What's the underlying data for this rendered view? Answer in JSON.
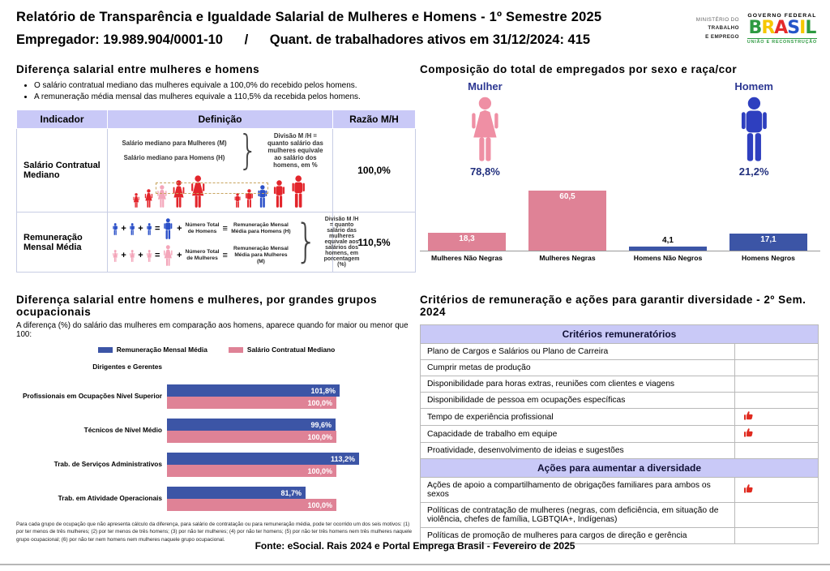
{
  "header": {
    "title": "Relatório de Transparência e Igualdade Salarial de Mulheres e Homens - 1º Semestre 2025",
    "employer": "Empregador: 19.989.904/0001-10",
    "separator": "/",
    "active_workers": "Quant. de trabalhadores ativos em 31/12/2024: 415",
    "logo": {
      "ministry_line1": "MINISTÉRIO DO",
      "ministry_line2": "TRABALHO",
      "ministry_line3": "E EMPREGO",
      "federal": "GOVERNO FEDERAL",
      "brand": "BRASIL",
      "brand_letter_colors": [
        "#2e9a41",
        "#f6c700",
        "#e52b2b",
        "#2455c8",
        "#f6c700",
        "#2e9a41"
      ],
      "slogan": "UNIÃO E RECONSTRUÇÃO"
    }
  },
  "salary_diff": {
    "title": "Diferença salarial entre mulheres e homens",
    "brace": "}",
    "bullets": [
      "O salário contratual mediano das mulheres equivale a 100,0% do recebido pelos homens.",
      "A remuneração média mensal das mulheres equivale a 110,5% da recebida pelos homens."
    ],
    "table": {
      "headers": [
        "Indicador",
        "Definição",
        "Razão M/H"
      ],
      "rows": [
        {
          "indicator": "Salário Contratual Mediano",
          "def_line1": "Salário mediano para Mulheres (M)",
          "def_line2": "Salário mediano para Homens (H)",
          "note": "Divisão M /H = quanto salário das mulheres equivale ao salário dos homens, em %",
          "ratio": "100,0%"
        },
        {
          "indicator": "Remuneração Mensal Média",
          "men_count_label": "Número Total de Homens",
          "men_avg_label": "Remuneração Mensal Média para Homens (H)",
          "women_count_label": "Número Total de Mulheres",
          "women_avg_label": "Remuneração Mensal Média para Mulheres (M)",
          "note": "Divisão M /H = quanto salário das mulheres equivale aos salários dos homens, em porcentagem (%)",
          "ratio": "110,5%"
        }
      ]
    }
  },
  "composition": {
    "title": "Composição do total de empregados por sexo e raça/cor",
    "female": {
      "label": "Mulher",
      "pct": "78,8%"
    },
    "male": {
      "label": "Homem",
      "pct": "21,2%"
    }
  },
  "occupational": {
    "title": "Diferença salarial entre homens e mulheres, por grandes grupos ocupacionais",
    "subtitle": "A diferença (%) do salário das mulheres em comparação aos homens, aparece quando for maior ou menor que 100:",
    "legend": [
      {
        "label": "Remuneração Mensal Média",
        "color": "#3c55a6"
      },
      {
        "label": "Salário Contratual Mediano",
        "color": "#df8296"
      }
    ],
    "footnote": "Para cada grupo de ocupação que não apresenta cálculo da diferença, para salário de contratação ou para remuneração média, pode ter ocorrido um dos seis motivos: (1) por ter menos de três mulheres; (2) por ter menos de três homens; (3) por não ter mulheres; (4) por não ter homens; (5) por não ter três homens nem três mulheres naquele grupo ocupacional; (6) por não ter nem homens nem mulheres naquele grupo ocupacional."
  },
  "criteria": {
    "title": "Critérios de remuneração e ações para garantir diversidade - 2º Sem. 2024",
    "sections": [
      {
        "header": "Critérios remuneratórios",
        "rows": [
          {
            "label": "Plano de Cargos e Salários ou Plano de Carreira",
            "checked": false
          },
          {
            "label": "Cumprir metas de produção",
            "checked": false
          },
          {
            "label": "Disponibilidade para horas extras, reuniões com clientes e viagens",
            "checked": false
          },
          {
            "label": "Disponibilidade de pessoa em ocupações específicas",
            "checked": false
          },
          {
            "label": "Tempo de experiência profissional",
            "checked": true
          },
          {
            "label": "Capacidade de trabalho em equipe",
            "checked": true
          },
          {
            "label": "Proatividade, desenvolvimento de ideias e sugestões",
            "checked": false
          }
        ]
      },
      {
        "header": "Ações para aumentar a diversidade",
        "rows": [
          {
            "label": "Ações de apoio a compartilhamento de obrigações familiares para ambos os sexos",
            "checked": true
          },
          {
            "label": "Políticas de contratação de mulheres (negras, com deficiência, em situação de violência, chefes de família, LGBTQIA+, Indígenas)",
            "checked": false
          },
          {
            "label": "Políticas de promoção de mulheres para cargos de direção e gerência",
            "checked": false
          }
        ]
      }
    ]
  },
  "footer": {
    "source": "Fonte: eSocial. Rais 2024 e Portal Emprega Brasil - Fevereiro de 2025"
  },
  "chart_data": [
    {
      "type": "bar",
      "title": "Composição do total de empregados por sexo e raça/cor",
      "categories": [
        "Mulheres Não Negras",
        "Mulheres Negras",
        "Homens Não Negros",
        "Homens Negros"
      ],
      "values": [
        18.3,
        60.5,
        4.1,
        17.1
      ],
      "value_labels": [
        "18,3",
        "60,5",
        "4,1",
        "17,1"
      ],
      "bar_colors": [
        "#df8296",
        "#df8296",
        "#3c55a6",
        "#3c55a6"
      ],
      "totals": {
        "Mulher": 78.8,
        "Homem": 21.2
      },
      "ylim": [
        0,
        65
      ],
      "grid": false,
      "legend_position": "none"
    },
    {
      "type": "bar",
      "orientation": "horizontal",
      "title": "Diferença salarial entre homens e mulheres, por grandes grupos ocupacionais",
      "categories": [
        "Dirigentes e Gerentes",
        "Profissionais em Ocupações Nível Superior",
        "Técnicos de Nível Médio",
        "Trab. de Serviços Administrativos",
        "Trab. em Atividade Operacionais"
      ],
      "series": [
        {
          "name": "Remuneração Mensal Média",
          "color": "#3c55a6",
          "values": [
            null,
            101.8,
            99.6,
            113.2,
            81.7
          ],
          "labels": [
            "",
            "101,8%",
            "99,6%",
            "113,2%",
            "81,7%"
          ]
        },
        {
          "name": "Salário Contratual Mediano",
          "color": "#df8296",
          "values": [
            null,
            100.0,
            100.0,
            100.0,
            100.0
          ],
          "labels": [
            "",
            "100,0%",
            "100,0%",
            "100,0%",
            "100,0%"
          ]
        }
      ],
      "xlim": [
        0,
        130
      ],
      "grid": false,
      "legend_position": "top"
    }
  ],
  "colors": {
    "lavender": "#c9c9f7",
    "pink_bar": "#df8296",
    "blue_bar": "#3c55a6",
    "female_icon": "#ef8fa4",
    "male_icon": "#2e3fbf",
    "red_figure": "#e3252b",
    "pink_figure": "#f4a6ba",
    "blue_figure": "#2b50c8",
    "red_flag_icon": "#e02b20",
    "navy_text": "#2c3792"
  }
}
